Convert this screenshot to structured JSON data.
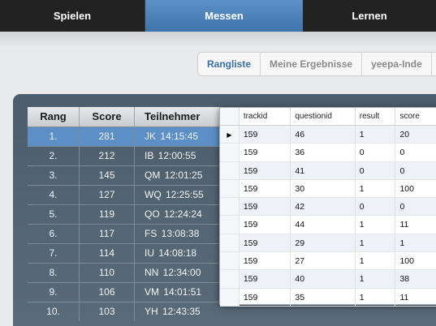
{
  "nav": {
    "tabs": [
      "Spielen",
      "Messen",
      "Lernen"
    ]
  },
  "subtabs": [
    "Rangliste",
    "Meine Ergebnisse",
    "yeepa-Inde"
  ],
  "ranking": {
    "headers": [
      "Rang",
      "Score",
      "Teilnehmer"
    ],
    "rows": [
      [
        "1.",
        "281",
        "JK 14:15:45"
      ],
      [
        "2.",
        "212",
        "IB 12:00:55"
      ],
      [
        "3.",
        "145",
        "QM 12:01:25"
      ],
      [
        "4.",
        "127",
        "WQ 12:25:55"
      ],
      [
        "5.",
        "119",
        "QO 12:24:24"
      ],
      [
        "6.",
        "117",
        "FS 13:08:38"
      ],
      [
        "7.",
        "114",
        "IU 14:08:18"
      ],
      [
        "8.",
        "110",
        "NN 12:34:00"
      ],
      [
        "9.",
        "106",
        "VM 14:01:51"
      ],
      [
        "10.",
        "103",
        "YH 12:43:35"
      ]
    ]
  },
  "grid": {
    "headers": [
      "trackid",
      "questionid",
      "result",
      "score"
    ],
    "rows": [
      [
        "159",
        "46",
        "1",
        "20"
      ],
      [
        "159",
        "36",
        "0",
        "0"
      ],
      [
        "159",
        "41",
        "0",
        "0"
      ],
      [
        "159",
        "30",
        "1",
        "100"
      ],
      [
        "159",
        "42",
        "0",
        "0"
      ],
      [
        "159",
        "44",
        "1",
        "11"
      ],
      [
        "159",
        "29",
        "1",
        "1"
      ],
      [
        "159",
        "27",
        "1",
        "100"
      ],
      [
        "159",
        "40",
        "1",
        "38"
      ],
      [
        "159",
        "35",
        "1",
        "11"
      ]
    ]
  }
}
